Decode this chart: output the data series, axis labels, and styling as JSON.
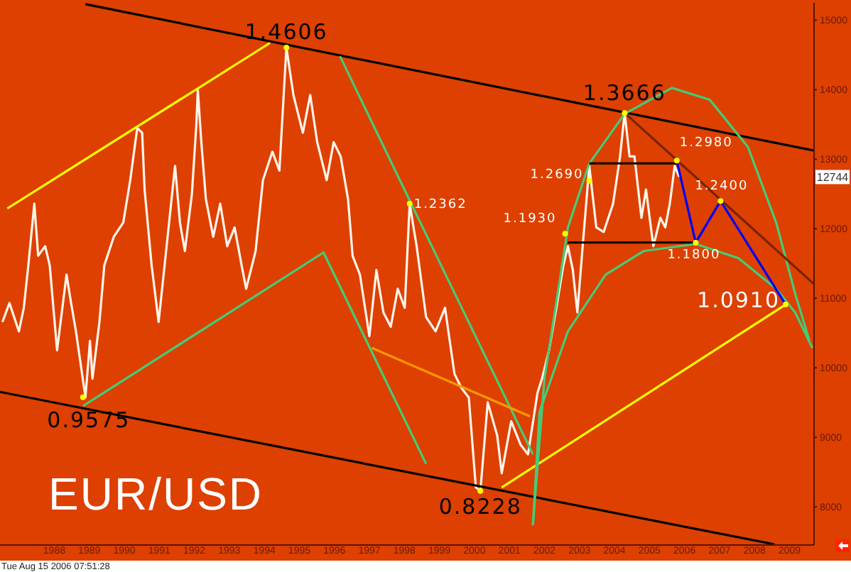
{
  "chart_data": {
    "type": "line",
    "title": "EUR/USD",
    "xlim": [
      1986.95,
      2010.2
    ],
    "ylim": [
      7450,
      15250
    ],
    "xticks": [
      {
        "value": 1988.5,
        "label": "1988"
      },
      {
        "value": 1989.5,
        "label": "1989"
      },
      {
        "value": 1990.5,
        "label": "1990"
      },
      {
        "value": 1991.5,
        "label": "1991"
      },
      {
        "value": 1992.5,
        "label": "1992"
      },
      {
        "value": 1993.5,
        "label": "1993"
      },
      {
        "value": 1994.5,
        "label": "1994"
      },
      {
        "value": 1995.5,
        "label": "1995"
      },
      {
        "value": 1996.5,
        "label": "1996"
      },
      {
        "value": 1997.5,
        "label": "1997"
      },
      {
        "value": 1998.5,
        "label": "1998"
      },
      {
        "value": 1999.5,
        "label": "1999"
      },
      {
        "value": 2000.5,
        "label": "2000"
      },
      {
        "value": 2001.5,
        "label": "2001"
      },
      {
        "value": 2002.5,
        "label": "2002"
      },
      {
        "value": 2003.5,
        "label": "2003"
      },
      {
        "value": 2004.5,
        "label": "2004"
      },
      {
        "value": 2005.5,
        "label": "2005"
      },
      {
        "value": 2006.5,
        "label": "2006"
      },
      {
        "value": 2007.5,
        "label": "2007"
      },
      {
        "value": 2008.5,
        "label": "2008"
      },
      {
        "value": 2009.5,
        "label": "2009"
      }
    ],
    "yticks": [
      8000,
      9000,
      10000,
      11000,
      12000,
      13000,
      14000,
      15000
    ],
    "line_style": "solid",
    "series": [
      {
        "color": "#fff4ea",
        "x": [
          1987.02,
          1987.22,
          1987.49,
          1987.63,
          1987.76,
          1987.93,
          1988.04,
          1988.24,
          1988.37,
          1988.58,
          1988.85,
          1988.98,
          1989.12,
          1989.39,
          1989.52,
          1989.59,
          1989.79,
          1989.93,
          1990.2,
          1990.47,
          1990.67,
          1990.87,
          1991.01,
          1991.08,
          1991.28,
          1991.48,
          1991.68,
          1991.95,
          1992.09,
          1992.23,
          1992.43,
          1992.56,
          1992.6,
          1992.7,
          1992.83,
          1993.04,
          1993.24,
          1993.44,
          1993.65,
          1993.85,
          1993.98,
          1994.25,
          1994.46,
          1994.73,
          1994.93,
          1995.06,
          1995.13,
          1995.33,
          1995.6,
          1995.81,
          1996.01,
          1996.28,
          1996.48,
          1996.68,
          1996.89,
          1997.02,
          1997.23,
          1997.5,
          1997.7,
          1997.9,
          1998.11,
          1998.31,
          1998.51,
          1998.65,
          1998.85,
          1999.12,
          1999.39,
          1999.66,
          1999.93,
          2000.13,
          2000.34,
          2000.54,
          2000.67,
          2000.88,
          2001.15,
          2001.28,
          2001.55,
          2001.82,
          2002.03,
          2002.3,
          2002.43,
          2002.63,
          2002.84,
          2003.04,
          2003.17,
          2003.31,
          2003.44,
          2003.58,
          2003.78,
          2003.98,
          2004.19,
          2004.46,
          2004.66,
          2004.79,
          2004.93,
          2005.07,
          2005.27,
          2005.4,
          2005.61,
          2005.81,
          2005.95,
          2006.08,
          2006.22,
          2006.35
        ],
        "values": [
          10659,
          10932,
          10524,
          10863,
          11475,
          12361,
          11612,
          11749,
          11475,
          10251,
          11340,
          10932,
          10524,
          9575,
          10387,
          9843,
          10659,
          11475,
          11884,
          12088,
          12700,
          13449,
          13381,
          12565,
          11475,
          10659,
          11612,
          12904,
          12088,
          11679,
          12496,
          13516,
          13994,
          13245,
          12428,
          11884,
          12361,
          11749,
          12020,
          11475,
          11136,
          11679,
          12700,
          13108,
          12837,
          13994,
          14606,
          13924,
          13381,
          13924,
          13245,
          12700,
          13245,
          13041,
          12428,
          11612,
          11340,
          10455,
          11408,
          10796,
          10591,
          11136,
          10863,
          12362,
          11749,
          10728,
          10524,
          10863,
          9912,
          9708,
          9571,
          8279,
          8228,
          9504,
          9026,
          8483,
          9230,
          8891,
          8755,
          9638,
          9843,
          10251,
          10863,
          11475,
          11749,
          11408,
          10796,
          11679,
          12904,
          12020,
          11953,
          12361,
          13041,
          13666,
          13041,
          13041,
          12157,
          12565,
          11749,
          12157,
          12020,
          12361,
          12904,
          12744
        ]
      },
      {
        "color": "#000000",
        "x": [
          1989.39,
          2010.2
        ],
        "values": [
          15231,
          13124
        ]
      },
      {
        "color": "#000000",
        "x": [
          1986.95,
          2009.07
        ],
        "values": [
          9653,
          7460
        ]
      },
      {
        "color": "#ffff00",
        "x": [
          1987.16,
          1994.66
        ],
        "values": [
          12292,
          14673
        ]
      },
      {
        "color": "#ffff00",
        "x": [
          2001.28,
          2009.39
        ],
        "values": [
          8279,
          10910
        ]
      },
      {
        "color": "#44cc77",
        "x": [
          1989.32,
          1996.19,
          1999.12
        ],
        "values": [
          9449,
          11659,
          8618
        ]
      },
      {
        "color": "#44cc77",
        "x": [
          1996.66,
          1999.12,
          2002.17
        ],
        "values": [
          14483,
          11918,
          8755
        ]
      },
      {
        "color": "#ff9900",
        "x": [
          1997.57,
          2002.09
        ],
        "values": [
          10285,
          9300
        ]
      },
      {
        "color": "#44cc77",
        "x": [
          2002.17,
          2002.5,
          2003.17,
          2003.78,
          2004.79,
          2006.14,
          2007.22,
          2008.31,
          2009.12,
          2009.66,
          2010.07
        ],
        "values": [
          7734,
          9843,
          12020,
          12939,
          13653,
          14026,
          13857,
          13177,
          12088,
          11067,
          10387
        ]
      },
      {
        "color": "#44cc77",
        "x": [
          2002.17,
          2002.36,
          2003.17,
          2004.25,
          2005.33,
          2006.82,
          2008.04,
          2009.12,
          2009.66,
          2010.15
        ],
        "values": [
          7734,
          9367,
          10524,
          11340,
          11679,
          11781,
          11577,
          11136,
          10796,
          10285
        ]
      },
      {
        "color": "#7a2200",
        "x": [
          2004.79,
          2010.2
        ],
        "values": [
          13666,
          11204
        ]
      },
      {
        "color": "#000000",
        "x": [
          2003.78,
          2006.28
        ],
        "values": [
          12940,
          12940
        ]
      },
      {
        "color": "#000000",
        "x": [
          2003.17,
          2006.82
        ],
        "values": [
          11802,
          11802
        ]
      },
      {
        "color": "#0000ff",
        "x": [
          2006.28,
          2006.82,
          2007.53,
          2009.39
        ],
        "values": [
          12980,
          11800,
          12400,
          10910
        ]
      }
    ],
    "annotations": [
      {
        "text": "1.4606",
        "x": 1995.13,
        "y": 14606
      },
      {
        "text": "1.3666",
        "x": 2004.79,
        "y": 13666
      },
      {
        "text": "0.8228",
        "x": 2000.67,
        "y": 8228
      },
      {
        "text": "0.9575",
        "x": 1989.32,
        "y": 9575
      },
      {
        "text": "1.2362",
        "x": 1998.65,
        "y": 12362
      },
      {
        "text": "1.1930",
        "x": 2003.09,
        "y": 11930
      },
      {
        "text": "1.2690",
        "x": 2003.78,
        "y": 12690
      },
      {
        "text": "1.2980",
        "x": 2006.28,
        "y": 12980
      },
      {
        "text": "1.1800",
        "x": 2006.82,
        "y": 11800
      },
      {
        "text": "1.2400",
        "x": 2007.53,
        "y": 12400
      },
      {
        "text": "1.0910",
        "x": 2009.39,
        "y": 10910
      },
      {
        "text": "12744",
        "y": 12744
      },
      "Tue Aug 15 2006 07:51:28"
    ]
  }
}
